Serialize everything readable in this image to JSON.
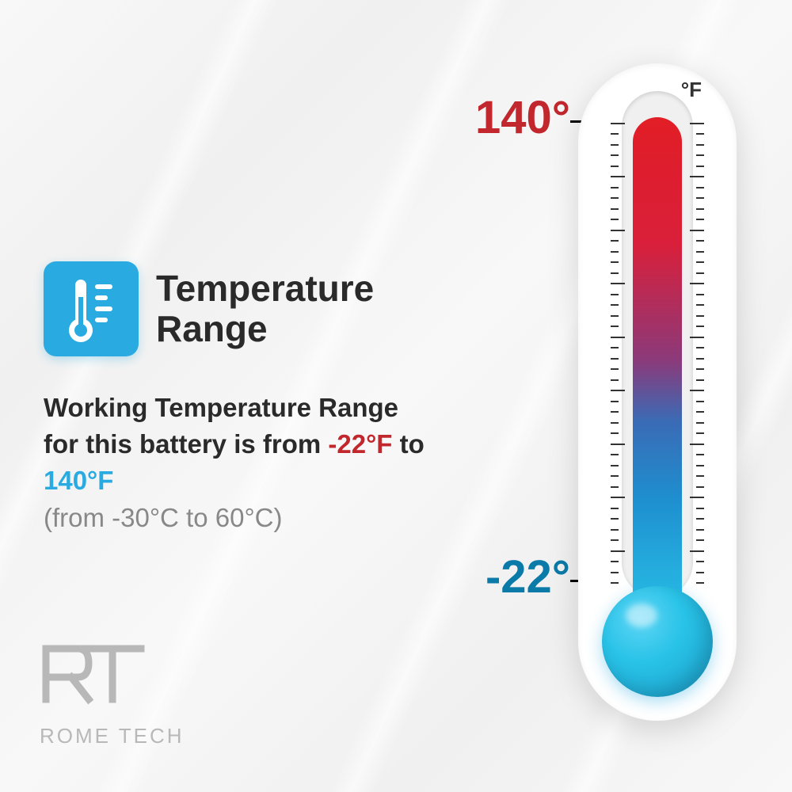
{
  "infographic": {
    "type": "infographic",
    "background_gradient": [
      "#f8f8f8",
      "#f0f0f0"
    ],
    "title": "Temperature\nRange",
    "title_color": "#2a2a2a",
    "title_fontsize": 46,
    "icon": {
      "name": "thermometer-icon",
      "bg_color": "#29abe2",
      "fg_color": "#ffffff"
    },
    "description": {
      "prefix": "Working Temperature Range for this battery is from ",
      "cold_value": "-22°F",
      "mid": " to ",
      "hot_value": "140°F",
      "celsius_note": "(from -30°C to 60°C)",
      "fontsize": 33,
      "text_color": "#2a2a2a",
      "cold_color": "#c1272d",
      "hot_color": "#29abe2",
      "sub_color": "#888888"
    },
    "thermometer": {
      "unit_label": "°F",
      "body_color": "#ffffff",
      "inner_bg": "#f0f0f0",
      "fill_gradient": [
        "#e21e26",
        "#d91f3a",
        "#8b3a7a",
        "#3a6bb5",
        "#1e8ecf",
        "#29c3e8"
      ],
      "bulb_gradient": [
        "#5dd5f5",
        "#29c3e8",
        "#1a9cc9"
      ],
      "tick_color": "#333333",
      "tick_count": 44,
      "major_every": 5,
      "hot_label": "140°",
      "hot_label_color": "#c1272d",
      "cold_label": "-22°",
      "cold_label_color": "#0a7aa8",
      "line_color": "#000000"
    },
    "logo": {
      "mark": "RT",
      "text": "ROME TECH",
      "color": "#b8b8b8"
    }
  }
}
